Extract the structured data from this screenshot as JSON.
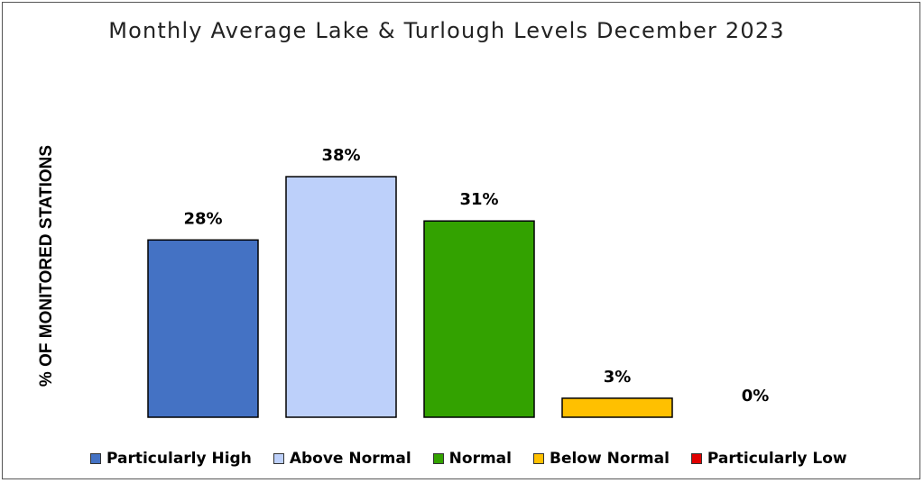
{
  "chart_data": {
    "type": "bar",
    "title": "Monthly Average Lake & Turlough Levels December 2023",
    "ylabel": "% OF MONITORED STATIONS",
    "xlabel": "",
    "categories": [
      "Particularly High",
      "Above Normal",
      "Normal",
      "Below Normal",
      "Particularly Low"
    ],
    "values": [
      28,
      38,
      31,
      3,
      0
    ],
    "value_labels": [
      "28%",
      "38%",
      "31%",
      "3%",
      "0%"
    ],
    "colors": [
      "#4472C4",
      "#BDD0FA",
      "#33A200",
      "#FFC000",
      "#E00000"
    ],
    "ylim": [
      0,
      40
    ],
    "grid": false,
    "legend_position": "bottom"
  }
}
